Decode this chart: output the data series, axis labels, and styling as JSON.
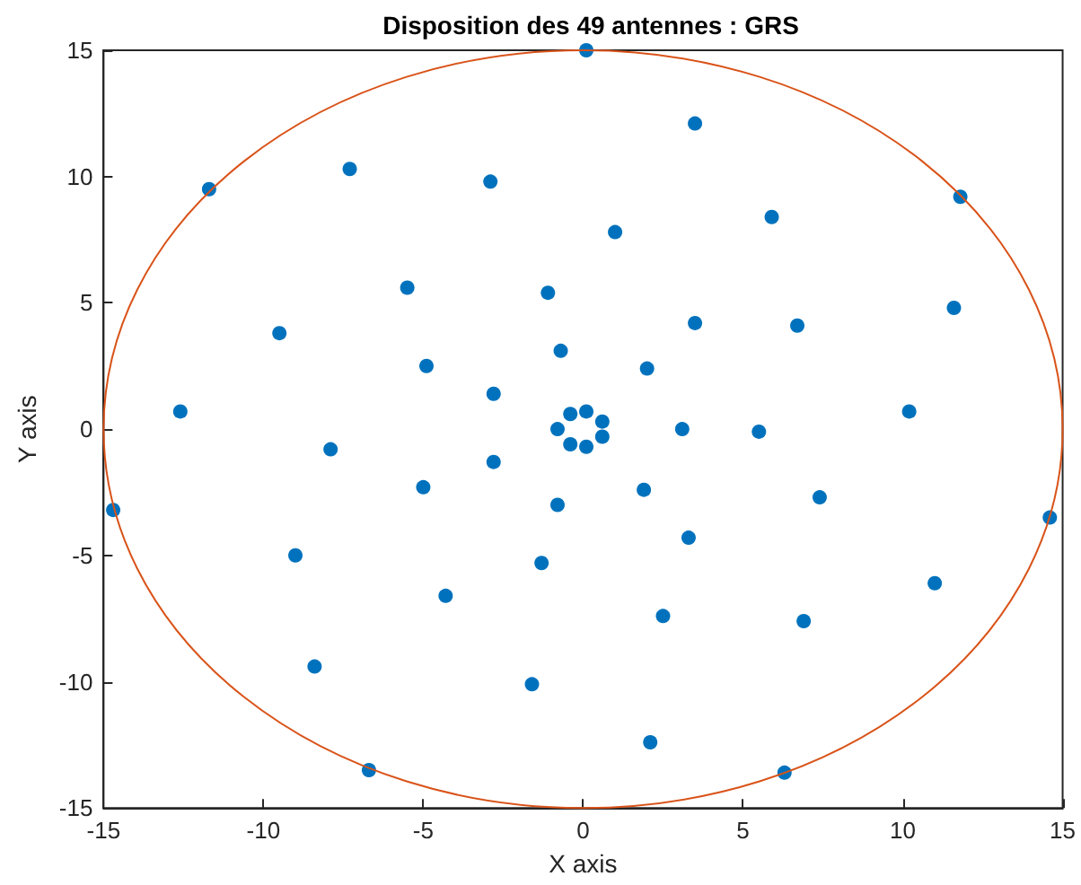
{
  "chart_data": {
    "type": "scatter",
    "title": "Disposition des 49 antennes : GRS",
    "xlabel": "X axis",
    "ylabel": "Y axis",
    "xlim": [
      -15,
      15
    ],
    "ylim": [
      -15,
      15
    ],
    "xticks": [
      -15,
      -10,
      -5,
      0,
      5,
      10,
      15
    ],
    "yticks": [
      -15,
      -10,
      -5,
      0,
      5,
      10,
      15
    ],
    "grid": false,
    "marker": "circle",
    "series": [
      {
        "color": "#0072bd",
        "x": [
          0.1,
          3.5,
          -11.7,
          -7.3,
          -2.9,
          5.9,
          11.8,
          1.0,
          -5.5,
          -1.1,
          11.6,
          -9.5,
          3.5,
          6.7,
          -0.7,
          -4.9,
          2.0,
          -2.8,
          -12.6,
          0.1,
          10.2,
          -0.4,
          0.6,
          -0.8,
          3.1,
          5.5,
          0.6,
          -0.4,
          0.1,
          -7.9,
          -2.8,
          -5.0,
          1.9,
          7.4,
          -0.8,
          -14.7,
          14.6,
          3.3,
          -9.0,
          -1.3,
          11.0,
          -4.3,
          2.5,
          6.9,
          -8.4,
          -1.6,
          2.1,
          -6.7,
          6.3
        ],
        "values": [
          15,
          12.1,
          9.5,
          10.3,
          9.8,
          8.4,
          9.2,
          7.8,
          5.6,
          5.4,
          4.8,
          3.8,
          4.2,
          4.1,
          3.1,
          2.5,
          2.4,
          1.4,
          0.7,
          0.7,
          0.7,
          0.6,
          0.3,
          0.0,
          0.0,
          -0.1,
          -0.3,
          -0.6,
          -0.7,
          -0.8,
          -1.3,
          -2.3,
          -2.4,
          -2.7,
          -3.0,
          -3.2,
          -3.5,
          -4.3,
          -5.0,
          -5.3,
          -6.1,
          -6.6,
          -7.4,
          -7.6,
          -9.4,
          -10.1,
          -12.4,
          -13.5,
          -13.6
        ]
      }
    ]
  }
}
